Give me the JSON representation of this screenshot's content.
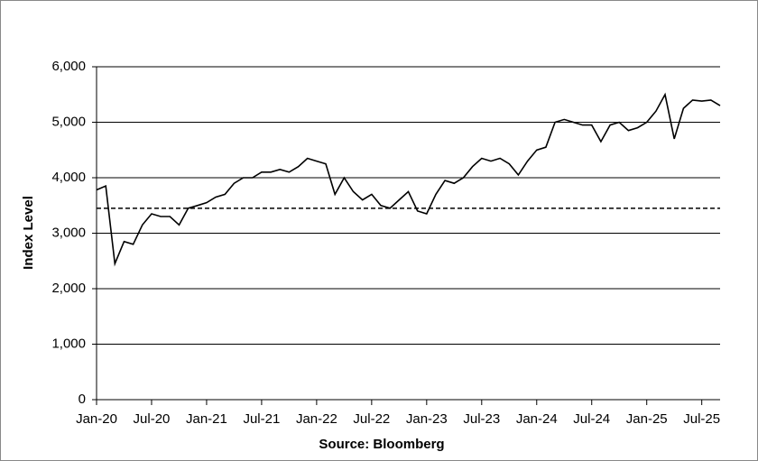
{
  "chart_data": {
    "type": "line",
    "y_label": "Index Level",
    "x_label": "Source: Bloomberg",
    "categories": [
      "Jan-20",
      null,
      null,
      null,
      null,
      null,
      "Jul-20",
      null,
      null,
      null,
      null,
      null,
      "Jan-21",
      null,
      null,
      null,
      null,
      null,
      "Jul-21",
      null,
      null,
      null,
      null,
      null,
      "Jan-22",
      null,
      null,
      null,
      null,
      null,
      "Jul-22",
      null,
      null,
      null,
      null,
      null,
      "Jan-23",
      null,
      null,
      null,
      null,
      null,
      "Jul-23",
      null,
      null,
      null,
      null,
      null,
      "Jan-24",
      null,
      null,
      null,
      null,
      null,
      "Jul-24",
      null,
      null,
      null,
      null,
      null,
      "Jan-25",
      null,
      null,
      null,
      null,
      null,
      "Jul-25",
      null,
      null
    ],
    "series": [
      {
        "color": "#000000",
        "values": [
          3780,
          3850,
          2450,
          2850,
          2800,
          3150,
          3350,
          3300,
          3300,
          3150,
          3450,
          3500,
          3550,
          3650,
          3700,
          3900,
          4000,
          4000,
          4100,
          4100,
          4150,
          4100,
          4200,
          4350,
          4300,
          4250,
          3700,
          4000,
          3750,
          3600,
          3700,
          3500,
          3450,
          3600,
          3750,
          3400,
          3350,
          3700,
          3950,
          3900,
          4000,
          4200,
          4350,
          4300,
          4350,
          4250,
          4050,
          4300,
          4500,
          4550,
          5000,
          5050,
          5000,
          4950,
          4950,
          4650,
          4950,
          5000,
          4850,
          4900,
          5000,
          5200,
          5500,
          4700,
          5250,
          5400,
          5380,
          5400,
          5300
        ]
      }
    ],
    "hline": 3450,
    "ylim": [
      0,
      6000
    ],
    "yticks": [
      0,
      {
        "value": 1000,
        "label": "1,000"
      },
      {
        "value": 2000,
        "label": "2,000"
      },
      {
        "value": 3000,
        "label": "3,000"
      },
      {
        "value": 4000,
        "label": "4,000"
      },
      {
        "value": 5000,
        "label": "5,000"
      },
      {
        "value": 6000,
        "label": "6,000"
      }
    ],
    "grid": true
  }
}
